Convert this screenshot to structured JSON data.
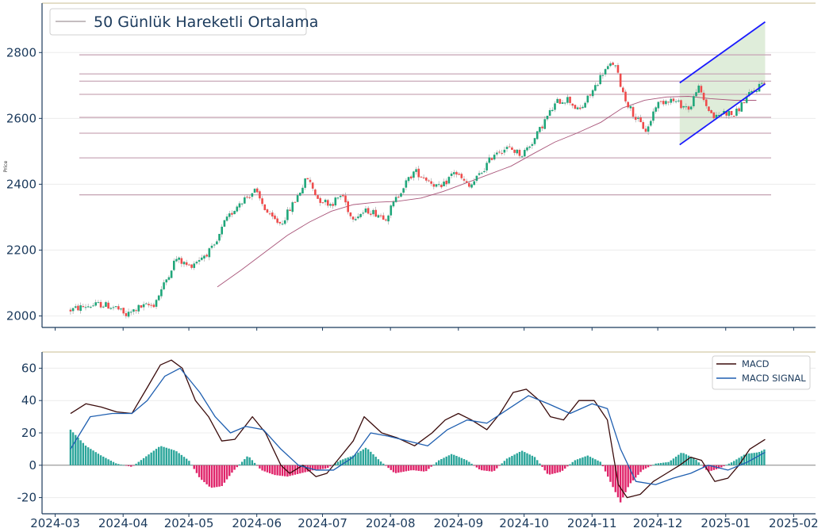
{
  "chart_data": [
    {
      "type": "candlestick",
      "ylabel": "Price",
      "ylim": [
        1965,
        2950
      ],
      "yticks": [
        2000,
        2200,
        2400,
        2600,
        2800
      ],
      "legend": {
        "text": "50 Günlük Hareketli Ortalama",
        "placement": "top-left"
      },
      "colors": {
        "up": "#1fa67a",
        "down": "#ef4b4b",
        "ma": "#a9567a",
        "hlines": "#c9a9b8",
        "channel": "#1a1aff",
        "channel_fill": "#d9ead3",
        "axis": "#1b3a5c"
      },
      "horizontal_levels": [
        2793,
        2735,
        2713,
        2673,
        2603,
        2555,
        2480,
        2368
      ],
      "moving_average_50": [
        [
          "2024-05-14",
          2088
        ],
        [
          "2024-05-25",
          2140
        ],
        [
          "2024-06-05",
          2195
        ],
        [
          "2024-06-15",
          2245
        ],
        [
          "2024-06-25",
          2285
        ],
        [
          "2024-07-05",
          2318
        ],
        [
          "2024-07-15",
          2338
        ],
        [
          "2024-07-25",
          2345
        ],
        [
          "2024-08-04",
          2348
        ],
        [
          "2024-08-15",
          2358
        ],
        [
          "2024-08-25",
          2378
        ],
        [
          "2024-09-05",
          2405
        ],
        [
          "2024-09-15",
          2430
        ],
        [
          "2024-09-25",
          2455
        ],
        [
          "2024-10-05",
          2492
        ],
        [
          "2024-10-15",
          2528
        ],
        [
          "2024-10-25",
          2555
        ],
        [
          "2024-11-05",
          2588
        ],
        [
          "2024-11-15",
          2632
        ],
        [
          "2024-11-25",
          2655
        ],
        [
          "2024-12-05",
          2665
        ],
        [
          "2024-12-15",
          2667
        ],
        [
          "2024-12-25",
          2660
        ],
        [
          "2025-01-05",
          2655
        ],
        [
          "2025-01-15",
          2655
        ]
      ],
      "price_path": [
        [
          "2024-03-08",
          2018
        ],
        [
          "2024-03-15",
          2030
        ],
        [
          "2024-03-22",
          2035
        ],
        [
          "2024-03-29",
          2025
        ],
        [
          "2024-04-02",
          2000
        ],
        [
          "2024-04-08",
          2025
        ],
        [
          "2024-04-15",
          2035
        ],
        [
          "2024-04-20",
          2100
        ],
        [
          "2024-04-25",
          2175
        ],
        [
          "2024-05-01",
          2150
        ],
        [
          "2024-05-07",
          2180
        ],
        [
          "2024-05-13",
          2210
        ],
        [
          "2024-05-17",
          2280
        ],
        [
          "2024-05-24",
          2345
        ],
        [
          "2024-05-31",
          2380
        ],
        [
          "2024-06-07",
          2300
        ],
        [
          "2024-06-12",
          2280
        ],
        [
          "2024-06-18",
          2345
        ],
        [
          "2024-06-24",
          2420
        ],
        [
          "2024-06-29",
          2355
        ],
        [
          "2024-07-05",
          2340
        ],
        [
          "2024-07-10",
          2370
        ],
        [
          "2024-07-14",
          2300
        ],
        [
          "2024-07-22",
          2320
        ],
        [
          "2024-07-30",
          2300
        ],
        [
          "2024-08-06",
          2385
        ],
        [
          "2024-08-12",
          2440
        ],
        [
          "2024-08-19",
          2410
        ],
        [
          "2024-08-24",
          2385
        ],
        [
          "2024-08-30",
          2440
        ],
        [
          "2024-09-06",
          2390
        ],
        [
          "2024-09-12",
          2440
        ],
        [
          "2024-09-18",
          2500
        ],
        [
          "2024-09-24",
          2510
        ],
        [
          "2024-09-30",
          2490
        ],
        [
          "2024-10-06",
          2540
        ],
        [
          "2024-10-11",
          2600
        ],
        [
          "2024-10-16",
          2650
        ],
        [
          "2024-10-21",
          2660
        ],
        [
          "2024-10-26",
          2620
        ],
        [
          "2024-11-01",
          2680
        ],
        [
          "2024-11-06",
          2740
        ],
        [
          "2024-11-11",
          2770
        ],
        [
          "2024-11-16",
          2660
        ],
        [
          "2024-11-21",
          2600
        ],
        [
          "2024-11-26",
          2560
        ],
        [
          "2024-11-30",
          2640
        ],
        [
          "2024-12-06",
          2660
        ],
        [
          "2024-12-12",
          2640
        ],
        [
          "2024-12-16",
          2630
        ],
        [
          "2024-12-19",
          2700
        ],
        [
          "2024-12-23",
          2640
        ],
        [
          "2024-12-27",
          2600
        ],
        [
          "2024-12-31",
          2620
        ],
        [
          "2025-01-05",
          2610
        ],
        [
          "2025-01-10",
          2660
        ],
        [
          "2025-01-15",
          2690
        ],
        [
          "2025-01-19",
          2720
        ]
      ],
      "channel": {
        "upper": [
          [
            "2024-12-11",
            2708
          ],
          [
            "2025-01-19",
            2893
          ]
        ],
        "lower": [
          [
            "2024-12-11",
            2520
          ],
          [
            "2025-01-19",
            2705
          ]
        ]
      }
    },
    {
      "type": "line+bar",
      "ylim": [
        -30,
        70
      ],
      "yticks": [
        -20,
        0,
        20,
        40,
        60
      ],
      "xticks": [
        "2024-03",
        "2024-04",
        "2024-05",
        "2024-06",
        "2024-07",
        "2024-08",
        "2024-09",
        "2024-10",
        "2024-11",
        "2024-12",
        "2025-01",
        "2025-02"
      ],
      "legend": {
        "placement": "top-right",
        "macd_label": "MACD",
        "signal_label": "MACD SIGNAL"
      },
      "colors": {
        "macd": "#3a0b0b",
        "signal": "#1f5fb0",
        "hist_pos": "#2aa59a",
        "hist_neg": "#e0246a",
        "axis": "#1b3a5c",
        "zero": "#888888"
      },
      "series": [
        {
          "name": "MACD",
          "points": [
            [
              "2024-03-08",
              32
            ],
            [
              "2024-03-15",
              38
            ],
            [
              "2024-03-22",
              36
            ],
            [
              "2024-03-29",
              33
            ],
            [
              "2024-04-05",
              32
            ],
            [
              "2024-04-12",
              48
            ],
            [
              "2024-04-18",
              62
            ],
            [
              "2024-04-23",
              65
            ],
            [
              "2024-04-28",
              60
            ],
            [
              "2024-05-04",
              40
            ],
            [
              "2024-05-10",
              30
            ],
            [
              "2024-05-16",
              15
            ],
            [
              "2024-05-22",
              16
            ],
            [
              "2024-05-30",
              30
            ],
            [
              "2024-06-05",
              20
            ],
            [
              "2024-06-12",
              0
            ],
            [
              "2024-06-16",
              -5
            ],
            [
              "2024-06-22",
              0
            ],
            [
              "2024-06-28",
              -7
            ],
            [
              "2024-07-03",
              -5
            ],
            [
              "2024-07-09",
              5
            ],
            [
              "2024-07-15",
              15
            ],
            [
              "2024-07-20",
              30
            ],
            [
              "2024-07-28",
              20
            ],
            [
              "2024-08-04",
              17
            ],
            [
              "2024-08-12",
              12
            ],
            [
              "2024-08-20",
              20
            ],
            [
              "2024-08-26",
              28
            ],
            [
              "2024-09-01",
              32
            ],
            [
              "2024-09-07",
              28
            ],
            [
              "2024-09-14",
              22
            ],
            [
              "2024-09-20",
              32
            ],
            [
              "2024-09-26",
              45
            ],
            [
              "2024-10-02",
              47
            ],
            [
              "2024-10-08",
              40
            ],
            [
              "2024-10-13",
              30
            ],
            [
              "2024-10-19",
              28
            ],
            [
              "2024-10-26",
              40
            ],
            [
              "2024-11-02",
              40
            ],
            [
              "2024-11-08",
              28
            ],
            [
              "2024-11-13",
              -12
            ],
            [
              "2024-11-17",
              -20
            ],
            [
              "2024-11-23",
              -18
            ],
            [
              "2024-11-29",
              -10
            ],
            [
              "2024-12-05",
              -5
            ],
            [
              "2024-12-11",
              0
            ],
            [
              "2024-12-16",
              5
            ],
            [
              "2024-12-21",
              3
            ],
            [
              "2024-12-27",
              -10
            ],
            [
              "2025-01-02",
              -8
            ],
            [
              "2025-01-07",
              0
            ],
            [
              "2025-01-12",
              10
            ],
            [
              "2025-01-19",
              16
            ]
          ]
        },
        {
          "name": "MACD SIGNAL",
          "points": [
            [
              "2024-03-08",
              10
            ],
            [
              "2024-03-17",
              30
            ],
            [
              "2024-03-27",
              32
            ],
            [
              "2024-04-05",
              32
            ],
            [
              "2024-04-12",
              40
            ],
            [
              "2024-04-20",
              55
            ],
            [
              "2024-04-27",
              60
            ],
            [
              "2024-05-06",
              45
            ],
            [
              "2024-05-13",
              30
            ],
            [
              "2024-05-20",
              20
            ],
            [
              "2024-05-27",
              24
            ],
            [
              "2024-06-04",
              22
            ],
            [
              "2024-06-12",
              10
            ],
            [
              "2024-06-20",
              0
            ],
            [
              "2024-06-28",
              -3
            ],
            [
              "2024-07-06",
              -3
            ],
            [
              "2024-07-15",
              5
            ],
            [
              "2024-07-23",
              20
            ],
            [
              "2024-07-31",
              18
            ],
            [
              "2024-08-09",
              15
            ],
            [
              "2024-08-18",
              12
            ],
            [
              "2024-08-27",
              22
            ],
            [
              "2024-09-05",
              28
            ],
            [
              "2024-09-14",
              26
            ],
            [
              "2024-09-24",
              35
            ],
            [
              "2024-10-03",
              43
            ],
            [
              "2024-10-12",
              38
            ],
            [
              "2024-10-22",
              32
            ],
            [
              "2024-11-01",
              38
            ],
            [
              "2024-11-08",
              35
            ],
            [
              "2024-11-14",
              10
            ],
            [
              "2024-11-21",
              -10
            ],
            [
              "2024-11-30",
              -12
            ],
            [
              "2024-12-08",
              -8
            ],
            [
              "2024-12-16",
              -5
            ],
            [
              "2024-12-24",
              0
            ],
            [
              "2025-01-02",
              -3
            ],
            [
              "2025-01-11",
              2
            ],
            [
              "2025-01-19",
              8
            ]
          ]
        }
      ],
      "histogram": [
        [
          "2024-03-08",
          22
        ],
        [
          "2024-03-15",
          12
        ],
        [
          "2024-03-22",
          6
        ],
        [
          "2024-03-29",
          1
        ],
        [
          "2024-04-05",
          -1
        ],
        [
          "2024-04-12",
          6
        ],
        [
          "2024-04-18",
          12
        ],
        [
          "2024-04-25",
          9
        ],
        [
          "2024-05-01",
          3
        ],
        [
          "2024-05-06",
          -8
        ],
        [
          "2024-05-11",
          -14
        ],
        [
          "2024-05-16",
          -13
        ],
        [
          "2024-05-21",
          -4
        ],
        [
          "2024-05-28",
          6
        ],
        [
          "2024-06-03",
          -3
        ],
        [
          "2024-06-09",
          -6
        ],
        [
          "2024-06-15",
          -7
        ],
        [
          "2024-06-21",
          -5
        ],
        [
          "2024-06-27",
          -3
        ],
        [
          "2024-07-03",
          -2
        ],
        [
          "2024-07-09",
          3
        ],
        [
          "2024-07-15",
          6
        ],
        [
          "2024-07-21",
          11
        ],
        [
          "2024-07-27",
          3
        ],
        [
          "2024-08-03",
          -5
        ],
        [
          "2024-08-11",
          -3
        ],
        [
          "2024-08-17",
          -4
        ],
        [
          "2024-08-23",
          3
        ],
        [
          "2024-08-29",
          7
        ],
        [
          "2024-09-05",
          3
        ],
        [
          "2024-09-11",
          -3
        ],
        [
          "2024-09-17",
          -4
        ],
        [
          "2024-09-23",
          4
        ],
        [
          "2024-09-30",
          9
        ],
        [
          "2024-10-06",
          5
        ],
        [
          "2024-10-12",
          -6
        ],
        [
          "2024-10-18",
          -4
        ],
        [
          "2024-10-24",
          3
        ],
        [
          "2024-10-30",
          6
        ],
        [
          "2024-11-05",
          2
        ],
        [
          "2024-11-10",
          -12
        ],
        [
          "2024-11-14",
          -23
        ],
        [
          "2024-11-18",
          -12
        ],
        [
          "2024-11-24",
          -3
        ],
        [
          "2024-11-30",
          1
        ],
        [
          "2024-12-06",
          2
        ],
        [
          "2024-12-12",
          8
        ],
        [
          "2024-12-18",
          4
        ],
        [
          "2024-12-24",
          -4
        ],
        [
          "2024-12-29",
          -2
        ],
        [
          "2025-01-04",
          2
        ],
        [
          "2025-01-10",
          7
        ],
        [
          "2025-01-16",
          8
        ],
        [
          "2025-01-19",
          10
        ]
      ]
    }
  ]
}
